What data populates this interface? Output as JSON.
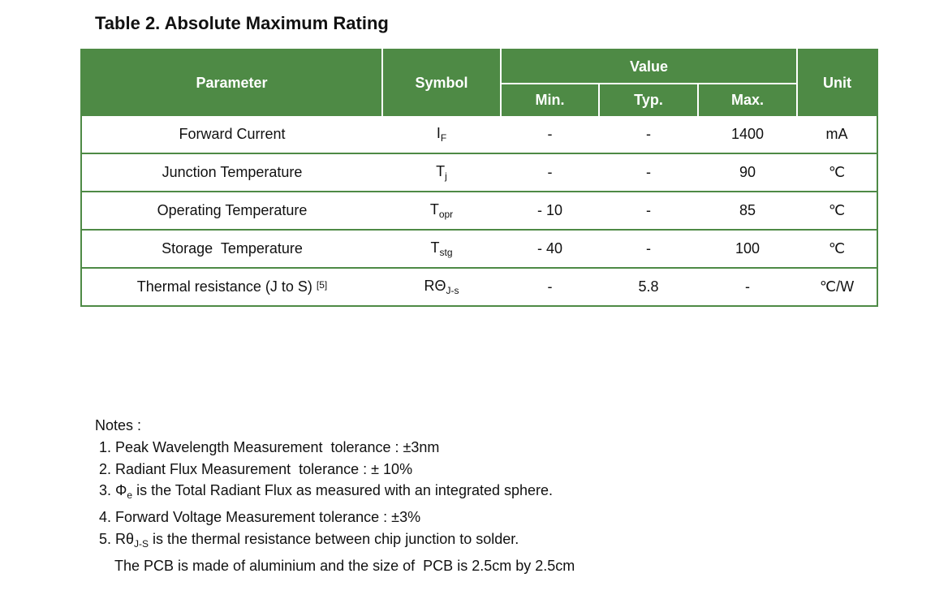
{
  "title": "Table 2. Absolute Maximum Rating",
  "table": {
    "headers": {
      "parameter": "Parameter",
      "symbol": "Symbol",
      "value": "Value",
      "min": "Min.",
      "typ": "Typ.",
      "max": "Max.",
      "unit": "Unit"
    },
    "rows": [
      {
        "parameter": "Forward Current",
        "ref": "",
        "sym_main": "I",
        "sym_sub": "F",
        "min": "-",
        "typ": "-",
        "max": "1400",
        "unit": "mA"
      },
      {
        "parameter": "Junction Temperature",
        "ref": "",
        "sym_main": "T",
        "sym_sub": "j",
        "min": "-",
        "typ": "-",
        "max": "90",
        "unit": "℃"
      },
      {
        "parameter": "Operating Temperature",
        "ref": "",
        "sym_main": "T",
        "sym_sub": "opr",
        "min": "- 10",
        "typ": "-",
        "max": "85",
        "unit": "℃"
      },
      {
        "parameter": "Storage  Temperature",
        "ref": "",
        "sym_main": "T",
        "sym_sub": "stg",
        "min": "- 40",
        "typ": "-",
        "max": "100",
        "unit": "℃"
      },
      {
        "parameter": "Thermal resistance (J to S)",
        "ref": "[5]",
        "sym_main": "RΘ",
        "sym_sub": "J-s",
        "min": "-",
        "typ": "5.8",
        "max": "-",
        "unit": "℃/W"
      }
    ]
  },
  "notes": {
    "heading": "Notes :",
    "n1": "1. Peak Wavelength Measurement  tolerance : ±3nm",
    "n2": "2. Radiant Flux Measurement  tolerance : ± 10%",
    "n3_prefix": "3. Φ",
    "n3_sub": "e",
    "n3_rest": " is the Total Radiant Flux as measured with an integrated sphere.",
    "n4": "4. Forward Voltage Measurement tolerance : ±3%",
    "n5_prefix": "5. Rθ",
    "n5_sub": "J-S",
    "n5_rest": " is the thermal resistance between chip junction to solder.",
    "n5_cont": "The PCB is made of aluminium and the size of  PCB is 2.5cm by 2.5cm"
  }
}
